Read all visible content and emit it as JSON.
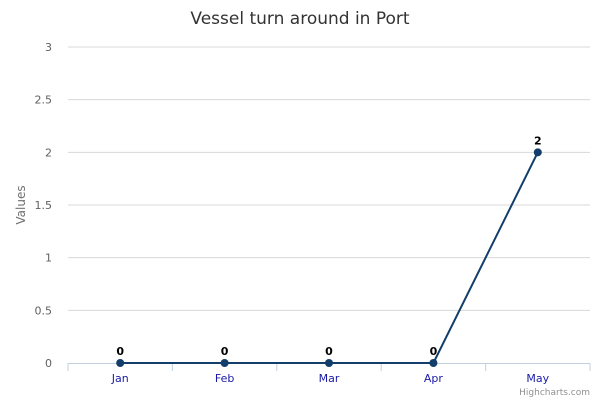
{
  "chart_data": {
    "type": "line",
    "title": "Vessel turn around in Port",
    "ylabel": "Values",
    "xlabel": "",
    "categories": [
      "Jan",
      "Feb",
      "Mar",
      "Apr",
      "May"
    ],
    "series": [
      {
        "values": [
          0,
          0,
          0,
          0,
          2
        ],
        "color": "#133e6b"
      }
    ],
    "data_labels": [
      "0",
      "0",
      "0",
      "0",
      "2"
    ],
    "ylim": [
      0,
      3
    ],
    "yticks": [
      0,
      0.5,
      1,
      1.5,
      2,
      2.5,
      3
    ],
    "ytick_labels": [
      "0",
      "0.5",
      "1",
      "1.5",
      "2",
      "2.5",
      "3"
    ],
    "grid": true,
    "legend": "none"
  },
  "credits": "Highcharts.com"
}
